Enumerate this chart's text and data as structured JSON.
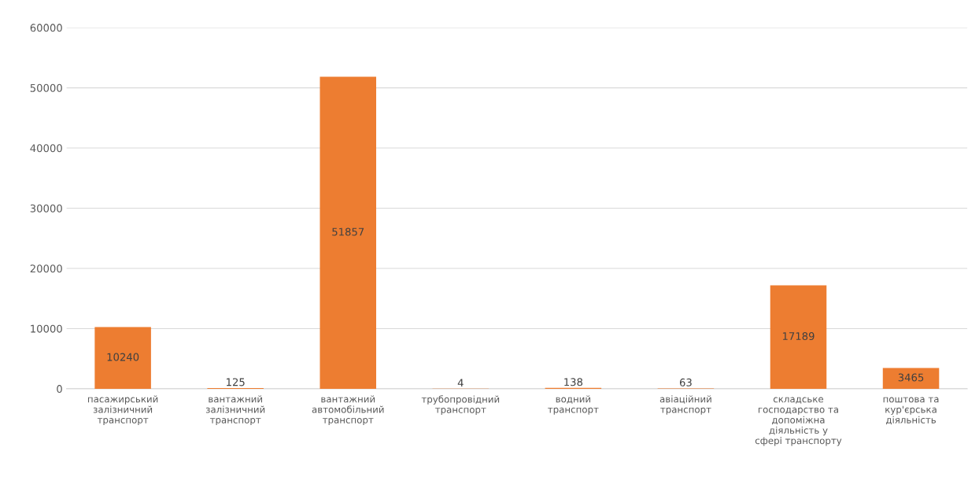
{
  "chart_data": {
    "type": "bar",
    "categories": [
      "пасажирський\nзалізничний\nтранспорт",
      "вантажний\nзалізничний\nтранспорт",
      "вантажний\nавтомобільний\nтранспорт",
      "трубопровідний\nтранспорт",
      "водний\nтранспорт",
      "авіаційний\nтранспорт",
      "складське\nгосподарство та\nдопоміжна\nдіяльність у\nсфері транспорту",
      "поштова та\nкур'єрська\nдіяльність"
    ],
    "values": [
      10240,
      125,
      51857,
      4,
      138,
      63,
      17189,
      3465
    ],
    "color": "#ed7d31",
    "ylim": [
      0,
      60000
    ],
    "yticks": [
      0,
      10000,
      20000,
      30000,
      40000,
      50000,
      60000
    ],
    "grid": "y",
    "data_labels": true
  }
}
